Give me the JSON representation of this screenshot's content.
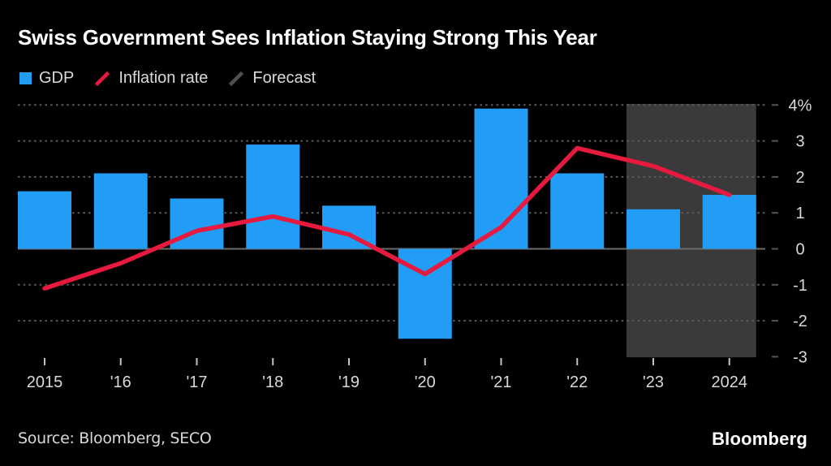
{
  "title": "Swiss Government Sees Inflation Staying Strong This Year",
  "legend": [
    {
      "label": "GDP",
      "marker": "square",
      "color": "#219df5"
    },
    {
      "label": "Inflation rate",
      "marker": "slash",
      "color": "#e6193e"
    },
    {
      "label": "Forecast",
      "marker": "slash",
      "color": "#4f4f4f"
    }
  ],
  "source": "Source: Bloomberg, SECO",
  "brand": "Bloomberg",
  "colors": {
    "background": "#000000",
    "bar_blue": "#219df5",
    "line_red": "#e6193e",
    "forecast_band": "#3a3a3a",
    "gridline": "#5c5c5c",
    "zero_line": "#6b6b6b",
    "axis_text": "#d9d9d9",
    "x_tick": "#c2c2c2",
    "y_tick": "#565656"
  },
  "chart_data": {
    "type": "bar",
    "title": "Swiss Government Sees Inflation Staying Strong This Year",
    "categories": [
      "2015",
      "'16",
      "'17",
      "'18",
      "'19",
      "'20",
      "'21",
      "'22",
      "'23",
      "2024"
    ],
    "series": [
      {
        "name": "GDP",
        "type": "bar",
        "color": "#219df5",
        "values": [
          1.6,
          2.1,
          1.4,
          2.9,
          1.2,
          -2.5,
          3.9,
          2.1,
          1.1,
          1.5
        ]
      },
      {
        "name": "Inflation rate",
        "type": "line",
        "color": "#e6193e",
        "values": [
          -1.1,
          -0.4,
          0.5,
          0.9,
          0.4,
          -0.7,
          0.6,
          2.8,
          2.3,
          1.5
        ]
      }
    ],
    "unit": "%",
    "ylim": [
      -3,
      4
    ],
    "y_ticks": [
      4,
      3,
      2,
      1,
      0,
      -1,
      -2,
      -3
    ],
    "y_tick_labels": [
      "4%",
      "3",
      "2",
      "1",
      "0",
      "-1",
      "-2",
      "-3"
    ],
    "axis_side": "right",
    "grid": "dotted-horizontal",
    "legend_position": "top-left",
    "forecast": {
      "label": "Forecast",
      "start_index": 8,
      "categories": [
        "'23",
        "2024"
      ],
      "band_color": "#3a3a3a"
    }
  }
}
